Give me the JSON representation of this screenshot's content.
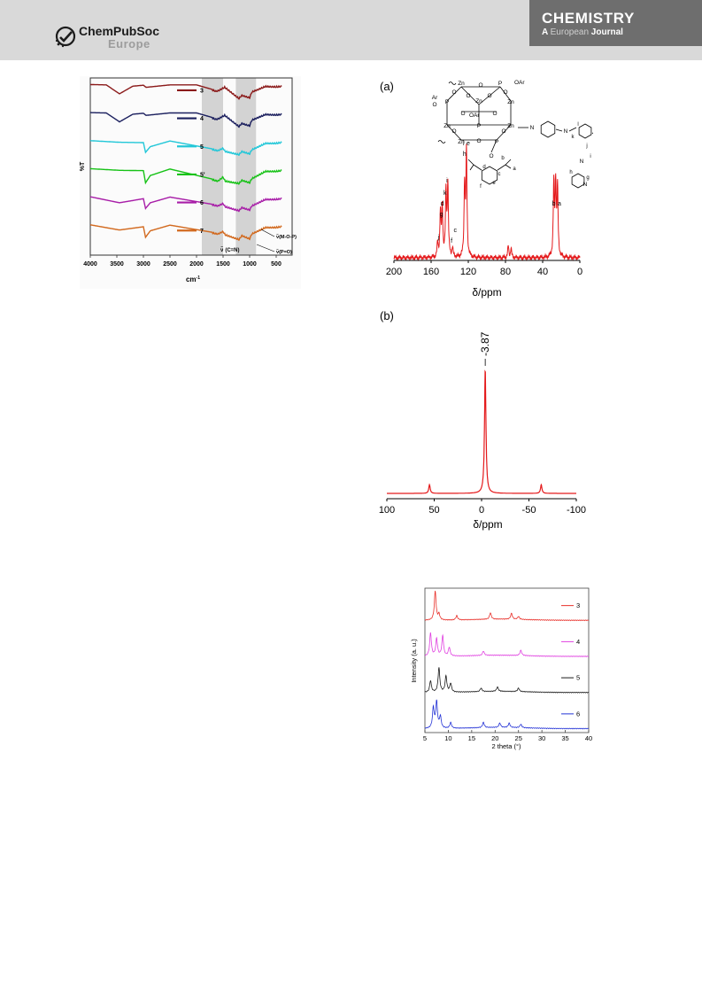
{
  "header": {
    "publisher_line1": "ChemPubSoc",
    "publisher_line2": "Europe",
    "journal_line1": "CHEMISTRY",
    "journal_line2_a": "A",
    "journal_line2_b": "European",
    "journal_line2_c": "Journal"
  },
  "colors": {
    "header_bg": "#d9d9d9",
    "journal_box": "#6e6e6e",
    "nmr_red": "#e41a1c"
  },
  "figures": {
    "ir": {
      "ylabel": "%T",
      "xlabel": "cm",
      "xlabel_sup": "-1",
      "annot_cn": "(C=N)",
      "annot_mop": "(M-O-P)",
      "annot_po": "(P=O)",
      "nu": "ν̃",
      "legend": [
        "3",
        "4",
        "5",
        "5'",
        "6",
        "7"
      ]
    },
    "nmr_c": {
      "panel": "(a)",
      "xlabel": "δ/ppm",
      "peak_labels": [
        "j",
        "g",
        "d",
        "k",
        "i",
        "f",
        "c",
        "h",
        "l",
        "e",
        "b",
        "a"
      ],
      "struct_labels": {
        "zn": "Zn",
        "p": "P",
        "o": "O",
        "oar": "OAr",
        "ar": "Ar",
        "n": "N",
        "a": "a",
        "b": "b",
        "c": "c",
        "d": "d",
        "e": "e",
        "f": "f",
        "g": "g",
        "h": "h",
        "i": "i",
        "j": "j",
        "k": "k",
        "l": "l"
      }
    },
    "nmr_p": {
      "panel": "(b)",
      "xlabel": "δ/ppm",
      "peak_label": "-3.87"
    },
    "pxrd": {
      "ylabel": "Intensity (a. u.)",
      "xlabel": "2 theta (°)",
      "legend": [
        "3",
        "4",
        "5",
        "6"
      ]
    }
  },
  "chart_data": [
    {
      "type": "line",
      "xlabel": "cm-1",
      "ylabel": "%T",
      "x_reversed": true,
      "xlim": [
        4000,
        200
      ],
      "x_ticks": [
        4000,
        3500,
        3000,
        2500,
        2000,
        1500,
        1000,
        500
      ],
      "series": [
        {
          "name": "3",
          "color": "#8b1a1a",
          "x": [
            4000,
            3700,
            3450,
            3200,
            3000,
            2950,
            2500,
            2000,
            1630,
            1580,
            1470,
            1200,
            1150,
            1000,
            960,
            700,
            500,
            400
          ],
          "y": [
            0.92,
            0.9,
            0.35,
            0.82,
            0.88,
            0.75,
            0.9,
            0.9,
            0.55,
            0.6,
            0.8,
            0.1,
            0.3,
            0.15,
            0.5,
            0.85,
            0.82,
            0.85
          ]
        },
        {
          "name": "4",
          "color": "#1b1f5e",
          "x": [
            4000,
            3700,
            3450,
            3200,
            3000,
            2950,
            2500,
            2000,
            1630,
            1580,
            1470,
            1200,
            1150,
            1000,
            960,
            700,
            500,
            400
          ],
          "y": [
            0.92,
            0.9,
            0.35,
            0.82,
            0.88,
            0.75,
            0.9,
            0.9,
            0.55,
            0.6,
            0.8,
            0.1,
            0.3,
            0.15,
            0.5,
            0.85,
            0.82,
            0.85
          ]
        },
        {
          "name": "5",
          "color": "#22c7d8",
          "x": [
            4000,
            3450,
            3000,
            2960,
            2870,
            2500,
            1600,
            1500,
            1460,
            1200,
            1150,
            1000,
            960,
            700,
            500,
            400
          ],
          "y": [
            0.92,
            0.82,
            0.8,
            0.2,
            0.55,
            0.9,
            0.35,
            0.5,
            0.3,
            0.1,
            0.3,
            0.15,
            0.4,
            0.8,
            0.8,
            0.85
          ]
        },
        {
          "name": "5'",
          "color": "#17c217",
          "x": [
            4000,
            3450,
            3000,
            2960,
            2870,
            2500,
            1600,
            1500,
            1460,
            1200,
            1150,
            1000,
            960,
            700,
            500,
            400
          ],
          "y": [
            0.92,
            0.82,
            0.8,
            0.05,
            0.5,
            0.9,
            0.2,
            0.45,
            0.2,
            0.05,
            0.25,
            0.1,
            0.35,
            0.8,
            0.8,
            0.85
          ]
        },
        {
          "name": "6",
          "color": "#a81ea8",
          "x": [
            4000,
            3450,
            3000,
            2960,
            2870,
            2500,
            1600,
            1500,
            1460,
            1200,
            1150,
            1000,
            960,
            700,
            500,
            400
          ],
          "y": [
            0.92,
            0.55,
            0.8,
            0.2,
            0.55,
            0.9,
            0.4,
            0.55,
            0.35,
            0.1,
            0.3,
            0.15,
            0.4,
            0.8,
            0.8,
            0.85
          ]
        },
        {
          "name": "7",
          "color": "#d2691e",
          "x": [
            4000,
            3450,
            3000,
            2960,
            2870,
            2500,
            1600,
            1500,
            1460,
            1200,
            1150,
            1000,
            960,
            700,
            500,
            400
          ],
          "y": [
            0.92,
            0.6,
            0.8,
            0.15,
            0.55,
            0.9,
            0.4,
            0.55,
            0.35,
            0.05,
            0.3,
            0.1,
            0.4,
            0.8,
            0.8,
            0.85
          ]
        }
      ]
    },
    {
      "type": "line",
      "xlabel": "δ/ppm",
      "x_reversed": true,
      "xlim": [
        200,
        0
      ],
      "x_ticks": [
        200,
        160,
        120,
        80,
        40,
        0
      ],
      "series": [
        {
          "color": "#e41a1c",
          "peaks": [
            {
              "x": 153,
              "h": 0.12
            },
            {
              "x": 150,
              "h": 0.38
            },
            {
              "x": 148,
              "h": 0.42
            },
            {
              "x": 144,
              "h": 0.55
            },
            {
              "x": 142,
              "h": 0.62
            },
            {
              "x": 137,
              "h": 0.08
            },
            {
              "x": 124,
              "h": 0.62
            },
            {
              "x": 122,
              "h": 0.9
            },
            {
              "x": 77,
              "h": 0.1
            },
            {
              "x": 74,
              "h": 0.08
            },
            {
              "x": 28,
              "h": 0.62
            },
            {
              "x": 26,
              "h": 0.62
            },
            {
              "x": 24,
              "h": 0.58
            }
          ]
        }
      ]
    },
    {
      "type": "line",
      "xlabel": "δ/ppm",
      "x_reversed": true,
      "xlim": [
        100,
        -100
      ],
      "x_ticks": [
        100,
        50,
        0,
        -50,
        -100
      ],
      "series": [
        {
          "color": "#e41a1c",
          "peaks": [
            {
              "x": 55,
              "h": 0.07
            },
            {
              "x": -3.87,
              "h": 1.0
            },
            {
              "x": -63,
              "h": 0.07
            }
          ]
        }
      ]
    },
    {
      "type": "line",
      "xlabel": "2 theta (°)",
      "ylabel": "Intensity (a. u.)",
      "xlim": [
        5,
        40
      ],
      "x_ticks": [
        5,
        10,
        15,
        20,
        25,
        30,
        35,
        40
      ],
      "series": [
        {
          "name": "3",
          "color": "#e8302a",
          "peaks": [
            {
              "x": 7.2,
              "h": 1.0
            },
            {
              "x": 8.0,
              "h": 0.2
            },
            {
              "x": 11.8,
              "h": 0.15
            },
            {
              "x": 19.0,
              "h": 0.22
            },
            {
              "x": 23.5,
              "h": 0.2
            },
            {
              "x": 25,
              "h": 0.1
            }
          ]
        },
        {
          "name": "4",
          "color": "#e040e0",
          "peaks": [
            {
              "x": 6.2,
              "h": 0.8
            },
            {
              "x": 7.5,
              "h": 0.6
            },
            {
              "x": 8.8,
              "h": 0.7
            },
            {
              "x": 10.2,
              "h": 0.3
            },
            {
              "x": 17.5,
              "h": 0.15
            },
            {
              "x": 25.5,
              "h": 0.18
            }
          ]
        },
        {
          "name": "5",
          "color": "#1a1a1a",
          "peaks": [
            {
              "x": 6.2,
              "h": 0.4
            },
            {
              "x": 8.0,
              "h": 0.85
            },
            {
              "x": 9.5,
              "h": 0.55
            },
            {
              "x": 10.5,
              "h": 0.3
            },
            {
              "x": 17,
              "h": 0.12
            },
            {
              "x": 20.5,
              "h": 0.15
            },
            {
              "x": 25,
              "h": 0.12
            }
          ]
        },
        {
          "name": "6",
          "color": "#2433d6",
          "peaks": [
            {
              "x": 6.8,
              "h": 0.7
            },
            {
              "x": 7.5,
              "h": 0.9
            },
            {
              "x": 8.3,
              "h": 0.4
            },
            {
              "x": 10.5,
              "h": 0.2
            },
            {
              "x": 17.5,
              "h": 0.18
            },
            {
              "x": 21,
              "h": 0.15
            },
            {
              "x": 23,
              "h": 0.15
            },
            {
              "x": 25.5,
              "h": 0.12
            }
          ]
        }
      ]
    }
  ]
}
